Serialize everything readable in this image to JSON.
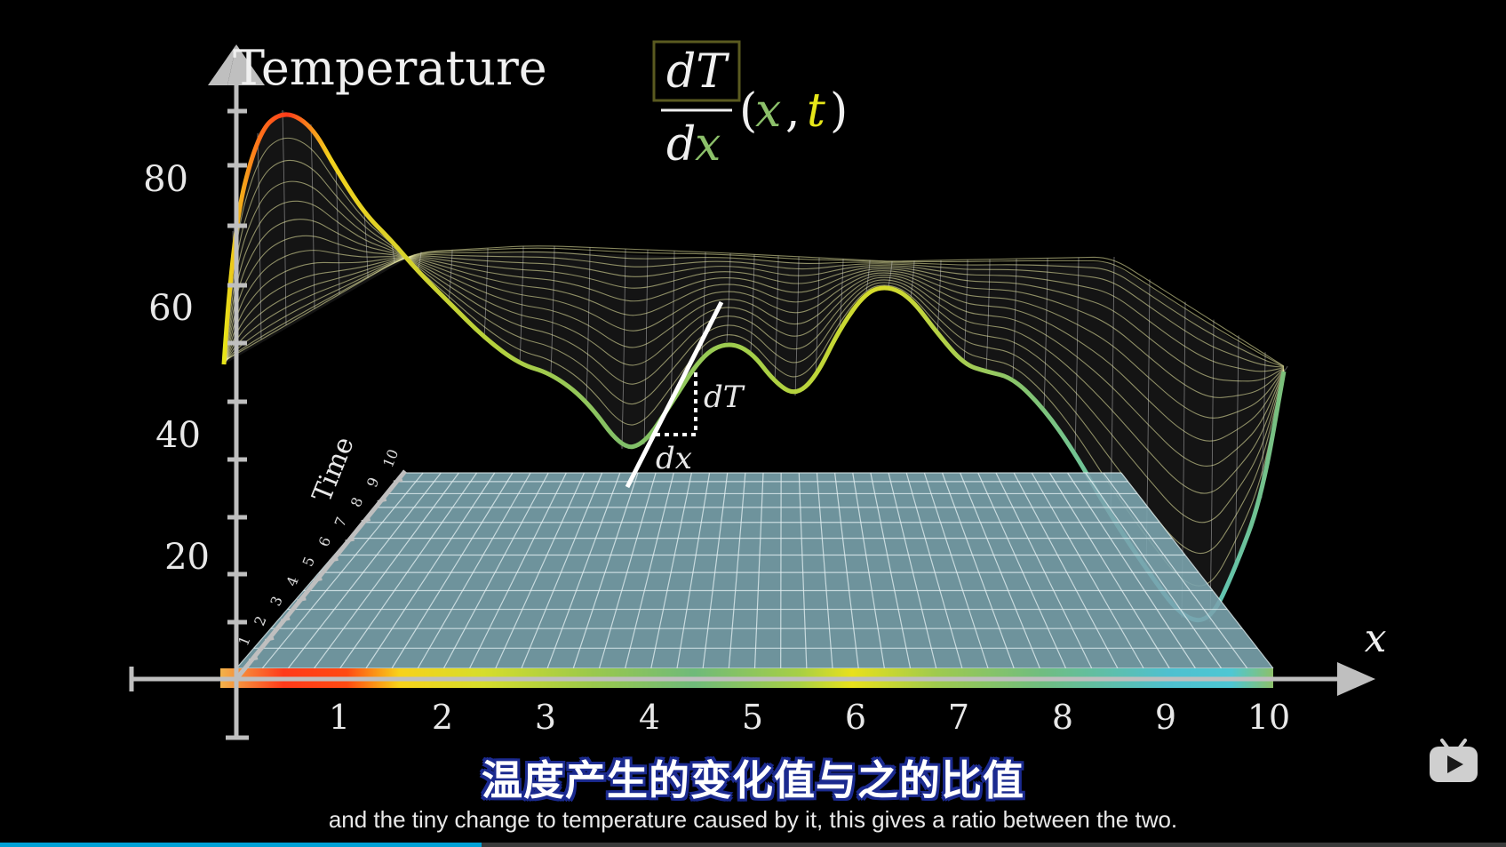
{
  "player": {
    "logo_icon": "bilibili-tv-icon",
    "progress_fraction": 0.32,
    "accent_color": "#00a1d6"
  },
  "scene": {
    "y_axis_label": "Temperature",
    "y_ticks": [
      "20",
      "40",
      "60",
      "80"
    ],
    "x_axis_label": "x",
    "x_ticks": [
      "1",
      "2",
      "3",
      "4",
      "5",
      "6",
      "7",
      "8",
      "9",
      "10"
    ],
    "time_axis_label": "Time",
    "time_ticks": [
      "1",
      "2",
      "3",
      "4",
      "5",
      "6",
      "7",
      "8",
      "9",
      "10"
    ],
    "formula": {
      "numerator": "dT",
      "denominator_d": "d",
      "denominator_x": "x",
      "open_paren": "(",
      "var_x": "x",
      "comma": ",",
      "var_t": "t",
      "close_paren": ")"
    },
    "slope_dT_label": "dT",
    "slope_dx_label": "dx",
    "colors": {
      "x_var": "#8cc06a",
      "t_var": "#e6e619",
      "axis": "#bfbfbf",
      "plane": "#7aa3ad",
      "box": "#5a5a20"
    }
  },
  "subtitles": {
    "chinese": "温度产生的变化值与之的比值",
    "english": "and the tiny change to temperature caused by it, this gives a ratio between the two."
  }
}
